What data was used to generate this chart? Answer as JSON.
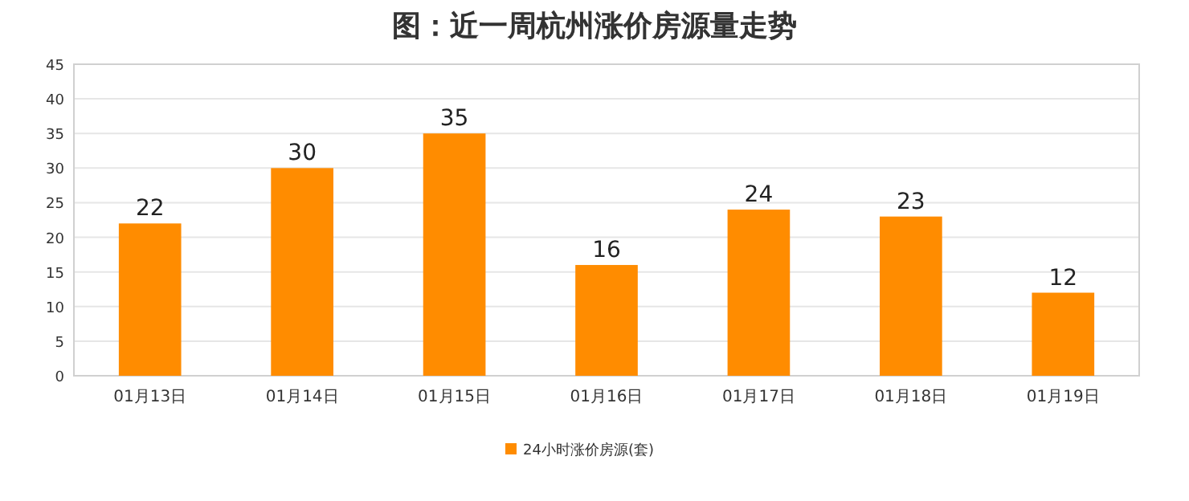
{
  "chart_data": {
    "type": "bar",
    "title": "图：近一周杭州涨价房源量走势",
    "categories": [
      "01月13日",
      "01月14日",
      "01月15日",
      "01月16日",
      "01月17日",
      "01月18日",
      "01月19日"
    ],
    "series": [
      {
        "name": "24小时涨价房源(套)",
        "color": "#ff8c00",
        "values": [
          22,
          30,
          35,
          16,
          24,
          23,
          12
        ]
      }
    ],
    "ylim": [
      0,
      45
    ],
    "yticks": [
      0,
      5,
      10,
      15,
      20,
      25,
      30,
      35,
      40,
      45
    ],
    "grid": "y",
    "legend": "bottom",
    "data_labels": true
  }
}
